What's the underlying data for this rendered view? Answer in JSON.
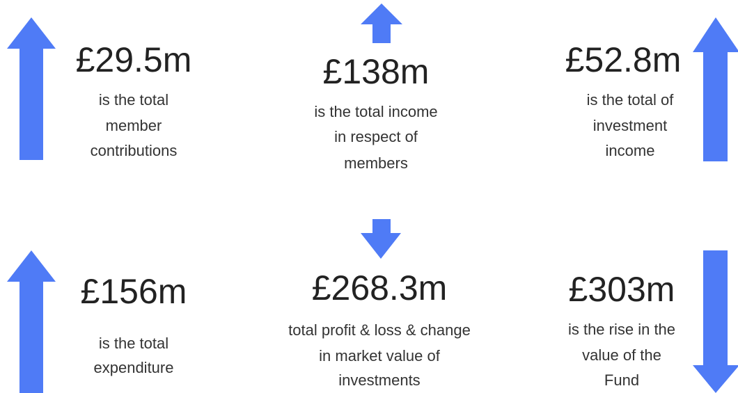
{
  "items": [
    {
      "value": "£29.5m",
      "lines": [
        "is the total",
        "member",
        "contributions"
      ]
    },
    {
      "value": "£138m",
      "lines": [
        "is the total income",
        "in respect of",
        "members"
      ]
    },
    {
      "value": "£52.8m",
      "lines": [
        "is the total of",
        "investment",
        "income"
      ]
    },
    {
      "value": "£156m",
      "lines": [
        "is the total",
        "expenditure"
      ]
    },
    {
      "value": "£268.3m",
      "lines": [
        "total profit & loss & change",
        "in market value of",
        "investments"
      ]
    },
    {
      "value": "£303m",
      "lines": [
        "is the rise in the",
        "value of the",
        "Fund"
      ]
    }
  ]
}
